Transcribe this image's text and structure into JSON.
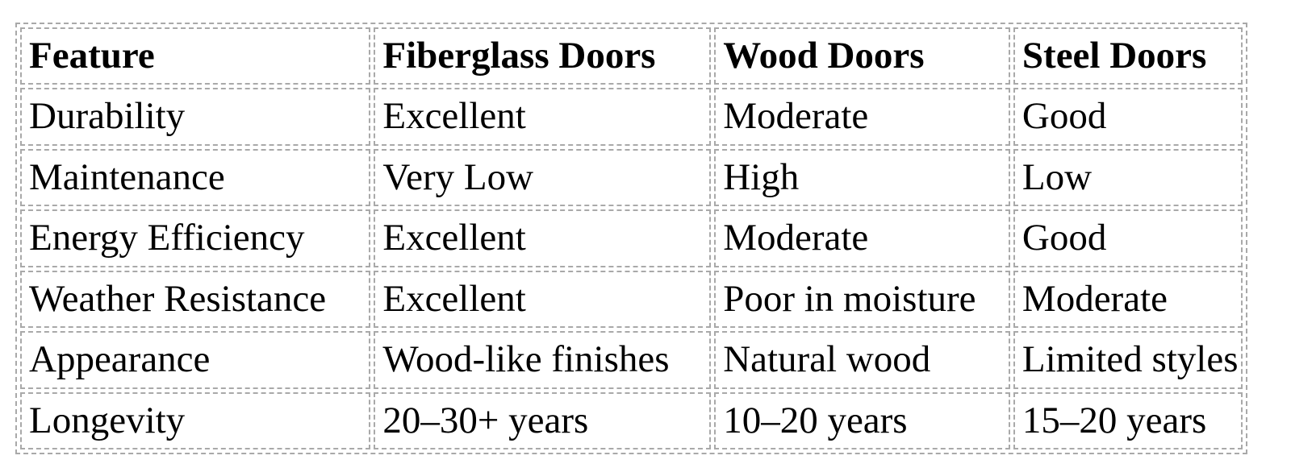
{
  "page": {
    "background": "#ffffff"
  },
  "table": {
    "name": "door-materials-comparison",
    "border_color": "#a9a9a9",
    "text_color": "#000000",
    "header": [
      "Feature",
      "Fiberglass Doors",
      "Wood Doors",
      "Steel Doors"
    ],
    "rows": [
      [
        "Durability",
        "Excellent",
        "Moderate",
        "Good"
      ],
      [
        "Maintenance",
        "Very Low",
        "High",
        "Low"
      ],
      [
        "Energy Efficiency",
        "Excellent",
        "Moderate",
        "Good"
      ],
      [
        "Weather Resistance",
        "Excellent",
        "Poor in moisture",
        "Moderate"
      ],
      [
        "Appearance",
        "Wood-like finishes",
        "Natural wood",
        "Limited styles"
      ],
      [
        "Longevity",
        "20–30+ years",
        "10–20 years",
        "15–20 years"
      ]
    ]
  },
  "chart_data": {
    "type": "table",
    "columns": [
      "Feature",
      "Fiberglass Doors",
      "Wood Doors",
      "Steel Doors"
    ],
    "rows": [
      [
        "Durability",
        "Excellent",
        "Moderate",
        "Good"
      ],
      [
        "Maintenance",
        "Very Low",
        "High",
        "Low"
      ],
      [
        "Energy Efficiency",
        "Excellent",
        "Moderate",
        "Good"
      ],
      [
        "Weather Resistance",
        "Excellent",
        "Poor in moisture",
        "Moderate"
      ],
      [
        "Appearance",
        "Wood-like finishes",
        "Natural wood",
        "Limited styles"
      ],
      [
        "Longevity",
        "20–30+ years",
        "10–20 years",
        "15–20 years"
      ]
    ]
  }
}
